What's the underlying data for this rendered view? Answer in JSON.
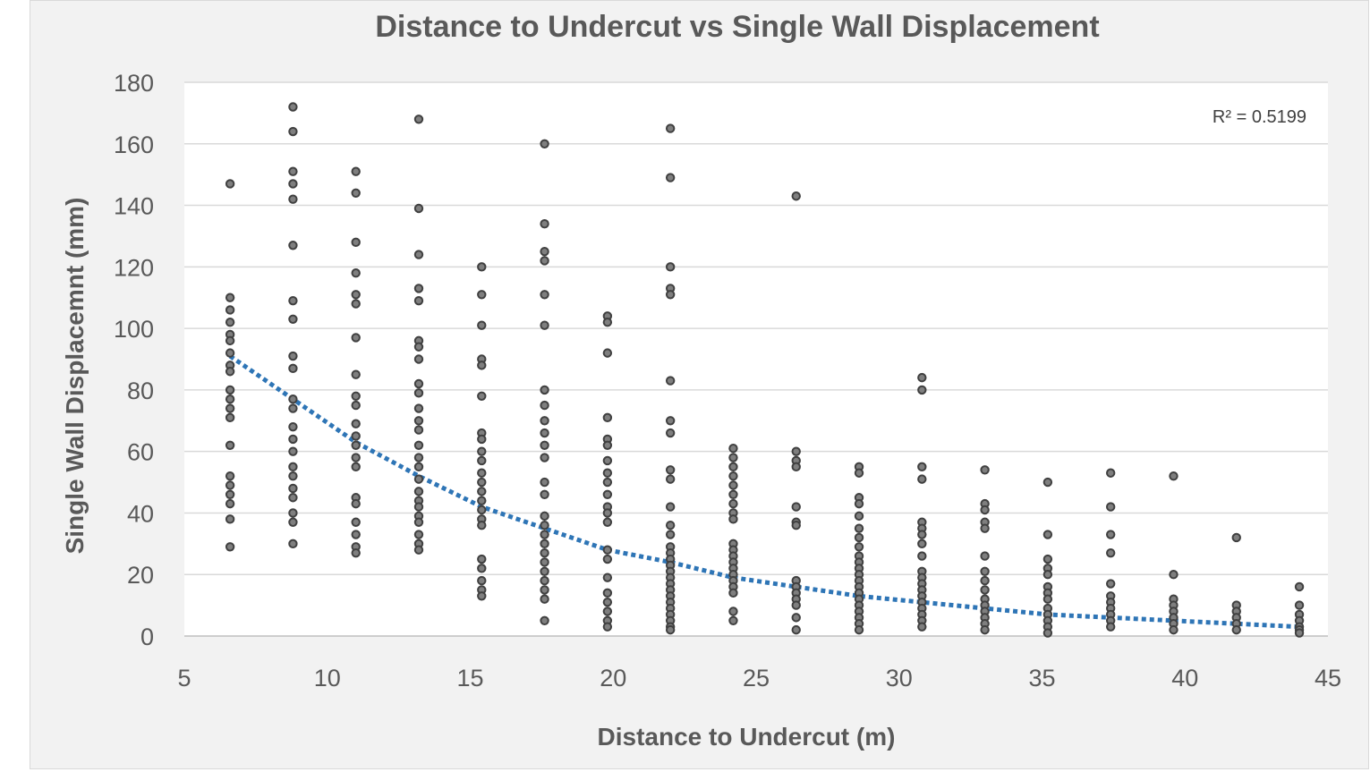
{
  "chart_data": {
    "type": "scatter",
    "title": "Distance to Undercut vs Single Wall Displacement",
    "xlabel": "Distance to Undercut (m)",
    "ylabel": "Single Wall Displacemnt (mm)",
    "xlim": [
      5,
      45
    ],
    "ylim": [
      0,
      180
    ],
    "xticks": [
      "5",
      "10",
      "15",
      "20",
      "25",
      "30",
      "35",
      "40",
      "45"
    ],
    "yticks": [
      "0",
      "20",
      "40",
      "60",
      "80",
      "100",
      "120",
      "140",
      "160",
      "180"
    ],
    "grid": "horizontal",
    "legend": "none",
    "annotation": "R² = 0.5199",
    "colors": {
      "points": "#404040",
      "trendline": "#2e75b6",
      "grid": "#d9d9d9",
      "background": "#f2f2f2",
      "plot_area": "#ffffff"
    },
    "series": [
      {
        "points": [
          [
            6.6,
            147
          ],
          [
            6.6,
            110
          ],
          [
            6.6,
            106
          ],
          [
            6.6,
            102
          ],
          [
            6.6,
            98
          ],
          [
            6.6,
            96
          ],
          [
            6.6,
            92
          ],
          [
            6.6,
            88
          ],
          [
            6.6,
            86
          ],
          [
            6.6,
            80
          ],
          [
            6.6,
            77
          ],
          [
            6.6,
            74
          ],
          [
            6.6,
            71
          ],
          [
            6.6,
            62
          ],
          [
            6.6,
            52
          ],
          [
            6.6,
            49
          ],
          [
            6.6,
            46
          ],
          [
            6.6,
            43
          ],
          [
            6.6,
            38
          ],
          [
            6.6,
            29
          ],
          [
            8.8,
            172
          ],
          [
            8.8,
            164
          ],
          [
            8.8,
            151
          ],
          [
            8.8,
            147
          ],
          [
            8.8,
            142
          ],
          [
            8.8,
            127
          ],
          [
            8.8,
            109
          ],
          [
            8.8,
            103
          ],
          [
            8.8,
            91
          ],
          [
            8.8,
            87
          ],
          [
            8.8,
            77
          ],
          [
            8.8,
            74
          ],
          [
            8.8,
            68
          ],
          [
            8.8,
            64
          ],
          [
            8.8,
            60
          ],
          [
            8.8,
            55
          ],
          [
            8.8,
            52
          ],
          [
            8.8,
            48
          ],
          [
            8.8,
            45
          ],
          [
            8.8,
            40
          ],
          [
            8.8,
            37
          ],
          [
            8.8,
            30
          ],
          [
            11,
            151
          ],
          [
            11,
            144
          ],
          [
            11,
            128
          ],
          [
            11,
            118
          ],
          [
            11,
            111
          ],
          [
            11,
            108
          ],
          [
            11,
            97
          ],
          [
            11,
            85
          ],
          [
            11,
            78
          ],
          [
            11,
            75
          ],
          [
            11,
            69
          ],
          [
            11,
            65
          ],
          [
            11,
            62
          ],
          [
            11,
            58
          ],
          [
            11,
            55
          ],
          [
            11,
            45
          ],
          [
            11,
            43
          ],
          [
            11,
            37
          ],
          [
            11,
            33
          ],
          [
            11,
            29
          ],
          [
            11,
            27
          ],
          [
            13.2,
            168
          ],
          [
            13.2,
            139
          ],
          [
            13.2,
            124
          ],
          [
            13.2,
            113
          ],
          [
            13.2,
            109
          ],
          [
            13.2,
            96
          ],
          [
            13.2,
            94
          ],
          [
            13.2,
            90
          ],
          [
            13.2,
            82
          ],
          [
            13.2,
            79
          ],
          [
            13.2,
            74
          ],
          [
            13.2,
            70
          ],
          [
            13.2,
            67
          ],
          [
            13.2,
            62
          ],
          [
            13.2,
            58
          ],
          [
            13.2,
            55
          ],
          [
            13.2,
            51
          ],
          [
            13.2,
            47
          ],
          [
            13.2,
            44
          ],
          [
            13.2,
            42
          ],
          [
            13.2,
            39
          ],
          [
            13.2,
            37
          ],
          [
            13.2,
            33
          ],
          [
            13.2,
            30
          ],
          [
            13.2,
            28
          ],
          [
            15.4,
            120
          ],
          [
            15.4,
            111
          ],
          [
            15.4,
            101
          ],
          [
            15.4,
            90
          ],
          [
            15.4,
            88
          ],
          [
            15.4,
            78
          ],
          [
            15.4,
            66
          ],
          [
            15.4,
            64
          ],
          [
            15.4,
            60
          ],
          [
            15.4,
            57
          ],
          [
            15.4,
            53
          ],
          [
            15.4,
            50
          ],
          [
            15.4,
            47
          ],
          [
            15.4,
            44
          ],
          [
            15.4,
            41
          ],
          [
            15.4,
            38
          ],
          [
            15.4,
            36
          ],
          [
            15.4,
            25
          ],
          [
            15.4,
            22
          ],
          [
            15.4,
            18
          ],
          [
            15.4,
            15
          ],
          [
            15.4,
            13
          ],
          [
            17.6,
            160
          ],
          [
            17.6,
            134
          ],
          [
            17.6,
            125
          ],
          [
            17.6,
            122
          ],
          [
            17.6,
            111
          ],
          [
            17.6,
            101
          ],
          [
            17.6,
            80
          ],
          [
            17.6,
            75
          ],
          [
            17.6,
            70
          ],
          [
            17.6,
            66
          ],
          [
            17.6,
            62
          ],
          [
            17.6,
            58
          ],
          [
            17.6,
            50
          ],
          [
            17.6,
            46
          ],
          [
            17.6,
            39
          ],
          [
            17.6,
            36
          ],
          [
            17.6,
            33
          ],
          [
            17.6,
            30
          ],
          [
            17.6,
            27
          ],
          [
            17.6,
            24
          ],
          [
            17.6,
            21
          ],
          [
            17.6,
            18
          ],
          [
            17.6,
            15
          ],
          [
            17.6,
            12
          ],
          [
            17.6,
            5
          ],
          [
            19.8,
            104
          ],
          [
            19.8,
            102
          ],
          [
            19.8,
            92
          ],
          [
            19.8,
            71
          ],
          [
            19.8,
            64
          ],
          [
            19.8,
            62
          ],
          [
            19.8,
            57
          ],
          [
            19.8,
            53
          ],
          [
            19.8,
            50
          ],
          [
            19.8,
            46
          ],
          [
            19.8,
            42
          ],
          [
            19.8,
            40
          ],
          [
            19.8,
            37
          ],
          [
            19.8,
            28
          ],
          [
            19.8,
            25
          ],
          [
            19.8,
            19
          ],
          [
            19.8,
            14
          ],
          [
            19.8,
            11
          ],
          [
            19.8,
            8
          ],
          [
            19.8,
            5
          ],
          [
            19.8,
            3
          ],
          [
            22,
            165
          ],
          [
            22,
            149
          ],
          [
            22,
            120
          ],
          [
            22,
            113
          ],
          [
            22,
            111
          ],
          [
            22,
            83
          ],
          [
            22,
            70
          ],
          [
            22,
            66
          ],
          [
            22,
            54
          ],
          [
            22,
            51
          ],
          [
            22,
            42
          ],
          [
            22,
            36
          ],
          [
            22,
            33
          ],
          [
            22,
            29
          ],
          [
            22,
            27
          ],
          [
            22,
            25
          ],
          [
            22,
            23
          ],
          [
            22,
            21
          ],
          [
            22,
            19
          ],
          [
            22,
            17
          ],
          [
            22,
            15
          ],
          [
            22,
            13
          ],
          [
            22,
            11
          ],
          [
            22,
            9
          ],
          [
            22,
            7
          ],
          [
            22,
            5
          ],
          [
            22,
            3
          ],
          [
            22,
            2
          ],
          [
            24.2,
            61
          ],
          [
            24.2,
            58
          ],
          [
            24.2,
            55
          ],
          [
            24.2,
            52
          ],
          [
            24.2,
            49
          ],
          [
            24.2,
            46
          ],
          [
            24.2,
            43
          ],
          [
            24.2,
            40
          ],
          [
            24.2,
            38
          ],
          [
            24.2,
            30
          ],
          [
            24.2,
            28
          ],
          [
            24.2,
            26
          ],
          [
            24.2,
            24
          ],
          [
            24.2,
            22
          ],
          [
            24.2,
            20
          ],
          [
            24.2,
            18
          ],
          [
            24.2,
            16
          ],
          [
            24.2,
            14
          ],
          [
            24.2,
            8
          ],
          [
            24.2,
            5
          ],
          [
            26.4,
            143
          ],
          [
            26.4,
            60
          ],
          [
            26.4,
            57
          ],
          [
            26.4,
            55
          ],
          [
            26.4,
            42
          ],
          [
            26.4,
            37
          ],
          [
            26.4,
            36
          ],
          [
            26.4,
            18
          ],
          [
            26.4,
            16
          ],
          [
            26.4,
            14
          ],
          [
            26.4,
            12
          ],
          [
            26.4,
            10
          ],
          [
            26.4,
            6
          ],
          [
            26.4,
            2
          ],
          [
            28.6,
            55
          ],
          [
            28.6,
            53
          ],
          [
            28.6,
            45
          ],
          [
            28.6,
            43
          ],
          [
            28.6,
            39
          ],
          [
            28.6,
            35
          ],
          [
            28.6,
            32
          ],
          [
            28.6,
            29
          ],
          [
            28.6,
            26
          ],
          [
            28.6,
            24
          ],
          [
            28.6,
            22
          ],
          [
            28.6,
            20
          ],
          [
            28.6,
            18
          ],
          [
            28.6,
            16
          ],
          [
            28.6,
            14
          ],
          [
            28.6,
            12
          ],
          [
            28.6,
            10
          ],
          [
            28.6,
            8
          ],
          [
            28.6,
            6
          ],
          [
            28.6,
            4
          ],
          [
            28.6,
            2
          ],
          [
            30.8,
            84
          ],
          [
            30.8,
            80
          ],
          [
            30.8,
            55
          ],
          [
            30.8,
            51
          ],
          [
            30.8,
            37
          ],
          [
            30.8,
            35
          ],
          [
            30.8,
            33
          ],
          [
            30.8,
            30
          ],
          [
            30.8,
            26
          ],
          [
            30.8,
            21
          ],
          [
            30.8,
            19
          ],
          [
            30.8,
            17
          ],
          [
            30.8,
            15
          ],
          [
            30.8,
            13
          ],
          [
            30.8,
            11
          ],
          [
            30.8,
            9
          ],
          [
            30.8,
            7
          ],
          [
            30.8,
            5
          ],
          [
            30.8,
            3
          ],
          [
            33,
            54
          ],
          [
            33,
            43
          ],
          [
            33,
            41
          ],
          [
            33,
            37
          ],
          [
            33,
            35
          ],
          [
            33,
            26
          ],
          [
            33,
            21
          ],
          [
            33,
            18
          ],
          [
            33,
            15
          ],
          [
            33,
            12
          ],
          [
            33,
            10
          ],
          [
            33,
            8
          ],
          [
            33,
            6
          ],
          [
            33,
            4
          ],
          [
            33,
            2
          ],
          [
            35.2,
            50
          ],
          [
            35.2,
            33
          ],
          [
            35.2,
            25
          ],
          [
            35.2,
            22
          ],
          [
            35.2,
            20
          ],
          [
            35.2,
            16
          ],
          [
            35.2,
            14
          ],
          [
            35.2,
            12
          ],
          [
            35.2,
            9
          ],
          [
            35.2,
            7
          ],
          [
            35.2,
            5
          ],
          [
            35.2,
            3
          ],
          [
            35.2,
            1
          ],
          [
            37.4,
            53
          ],
          [
            37.4,
            42
          ],
          [
            37.4,
            33
          ],
          [
            37.4,
            27
          ],
          [
            37.4,
            17
          ],
          [
            37.4,
            13
          ],
          [
            37.4,
            11
          ],
          [
            37.4,
            9
          ],
          [
            37.4,
            7
          ],
          [
            37.4,
            5
          ],
          [
            37.4,
            3
          ],
          [
            39.6,
            52
          ],
          [
            39.6,
            20
          ],
          [
            39.6,
            12
          ],
          [
            39.6,
            10
          ],
          [
            39.6,
            8
          ],
          [
            39.6,
            6
          ],
          [
            39.6,
            4
          ],
          [
            39.6,
            2
          ],
          [
            41.8,
            32
          ],
          [
            41.8,
            10
          ],
          [
            41.8,
            8
          ],
          [
            41.8,
            6
          ],
          [
            41.8,
            4
          ],
          [
            41.8,
            2
          ],
          [
            44,
            16
          ],
          [
            44,
            10
          ],
          [
            44,
            7
          ],
          [
            44,
            5
          ],
          [
            44,
            3
          ],
          [
            44,
            2
          ],
          [
            44,
            1
          ]
        ]
      }
    ],
    "trendline": {
      "type": "power",
      "x": [
        6.6,
        8.8,
        11,
        13.2,
        15.4,
        17.6,
        19.8,
        22,
        24.2,
        26.4,
        28.6,
        30.8,
        33,
        35.2,
        37.4,
        39.6,
        41.8,
        44
      ],
      "y": [
        91,
        77,
        63,
        52,
        42,
        35,
        28,
        24,
        19,
        16,
        13,
        11,
        9,
        7,
        6,
        5,
        4,
        3
      ]
    }
  }
}
